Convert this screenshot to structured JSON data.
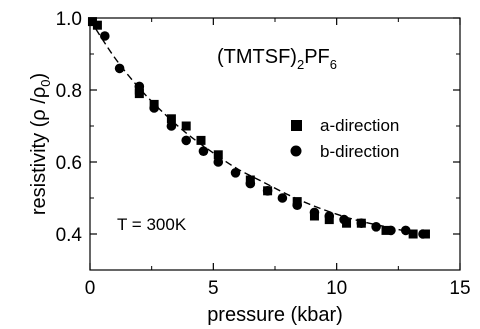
{
  "chart_data": {
    "type": "scatter",
    "title": "",
    "xlabel": "pressure (kbar)",
    "ylabel": {
      "prefix": "resistivity (",
      "rho": "ρ",
      "slash": " /",
      "rho0": "ρ",
      "sub0": "0",
      "suffix": ")"
    },
    "xlim": [
      0,
      15
    ],
    "ylim": [
      0.3,
      1.0
    ],
    "x_ticks": [
      0,
      5,
      10,
      15
    ],
    "x_tick_labels": [
      "0",
      "5",
      "10",
      "15"
    ],
    "y_ticks": [
      0.4,
      0.6,
      0.8,
      1.0
    ],
    "y_tick_labels": [
      "0.4",
      "0.6",
      "0.8",
      "1.0"
    ],
    "annotations": {
      "compound": {
        "open": "(TMTSF)",
        "sub2": "2",
        "pf": "PF",
        "sub6": "6"
      },
      "temperature": "T = 300K"
    },
    "legend_position": "right",
    "series": [
      {
        "name": "a-direction",
        "marker": "square",
        "x": [
          0.1,
          0.3,
          2.0,
          2.0,
          2.6,
          3.3,
          3.9,
          4.5,
          5.2,
          6.5,
          7.2,
          8.4,
          9.1,
          9.7,
          10.4,
          11.0,
          12.0,
          13.1,
          13.6
        ],
        "y": [
          0.99,
          0.98,
          0.8,
          0.79,
          0.76,
          0.72,
          0.7,
          0.66,
          0.62,
          0.55,
          0.52,
          0.49,
          0.45,
          0.44,
          0.43,
          0.43,
          0.41,
          0.4,
          0.4
        ]
      },
      {
        "name": "b-direction",
        "marker": "circle",
        "x": [
          0.6,
          1.2,
          2.0,
          2.6,
          3.3,
          3.9,
          4.6,
          5.2,
          5.9,
          6.5,
          7.2,
          7.8,
          8.4,
          9.1,
          9.7,
          10.3,
          11.0,
          11.6,
          12.2,
          12.8,
          13.5
        ],
        "y": [
          0.95,
          0.86,
          0.81,
          0.75,
          0.7,
          0.66,
          0.63,
          0.6,
          0.57,
          0.54,
          0.52,
          0.5,
          0.48,
          0.46,
          0.45,
          0.44,
          0.43,
          0.42,
          0.41,
          0.41,
          0.4
        ]
      }
    ],
    "fit_curve": {
      "style": "dashed",
      "x": [
        0,
        1,
        2,
        3,
        4,
        5,
        6,
        7,
        8,
        9,
        10,
        11,
        12,
        13,
        13.6
      ],
      "y": [
        0.995,
        0.89,
        0.805,
        0.735,
        0.675,
        0.625,
        0.58,
        0.545,
        0.51,
        0.48,
        0.455,
        0.435,
        0.42,
        0.405,
        0.395
      ]
    }
  }
}
